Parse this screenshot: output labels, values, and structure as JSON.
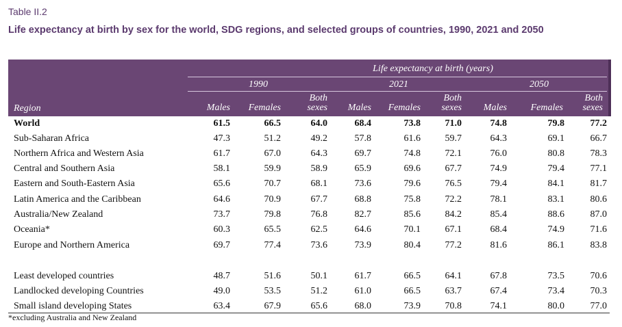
{
  "table_label": "Table II.2",
  "title": "Life expectancy at birth by sex for the world, SDG regions, and selected groups of countries, 1990, 2021 and 2050",
  "header": {
    "super": "Life expectancy at birth (years)",
    "region": "Region",
    "years": [
      "1990",
      "2021",
      "2050"
    ],
    "sub": {
      "males": "Males",
      "females": "Females",
      "both_line1": "Both",
      "both_line2": "sexes"
    }
  },
  "rows": [
    {
      "region": "World",
      "values": [
        "61.5",
        "66.5",
        "64.0",
        "68.4",
        "73.8",
        "71.0",
        "74.8",
        "79.8",
        "77.2"
      ]
    },
    {
      "region": "Sub-Saharan Africa",
      "values": [
        "47.3",
        "51.2",
        "49.2",
        "57.8",
        "61.6",
        "59.7",
        "64.3",
        "69.1",
        "66.7"
      ]
    },
    {
      "region": "Northern Africa and Western Asia",
      "values": [
        "61.7",
        "67.0",
        "64.3",
        "69.7",
        "74.8",
        "72.1",
        "76.0",
        "80.8",
        "78.3"
      ]
    },
    {
      "region": "Central and Southern Asia",
      "values": [
        "58.1",
        "59.9",
        "58.9",
        "65.9",
        "69.6",
        "67.7",
        "74.9",
        "79.4",
        "77.1"
      ]
    },
    {
      "region": "Eastern and South-Eastern Asia",
      "values": [
        "65.6",
        "70.7",
        "68.1",
        "73.6",
        "79.6",
        "76.5",
        "79.4",
        "84.1",
        "81.7"
      ]
    },
    {
      "region": "Latin America and the Caribbean",
      "values": [
        "64.6",
        "70.9",
        "67.7",
        "68.8",
        "75.8",
        "72.2",
        "78.1",
        "83.1",
        "80.6"
      ]
    },
    {
      "region": "Australia/New Zealand",
      "values": [
        "73.7",
        "79.8",
        "76.8",
        "82.7",
        "85.6",
        "84.2",
        "85.4",
        "88.6",
        "87.0"
      ]
    },
    {
      "region": "Oceania*",
      "values": [
        "60.3",
        "65.5",
        "62.5",
        "64.6",
        "70.1",
        "67.1",
        "68.4",
        "74.9",
        "71.6"
      ]
    },
    {
      "region": "Europe and Northern America",
      "values": [
        "69.7",
        "77.4",
        "73.6",
        "73.9",
        "80.4",
        "77.2",
        "81.6",
        "86.1",
        "83.8"
      ]
    },
    {
      "region": "Least developed countries",
      "values": [
        "48.7",
        "51.6",
        "50.1",
        "61.7",
        "66.5",
        "64.1",
        "67.8",
        "73.5",
        "70.6"
      ]
    },
    {
      "region": "Landlocked developing Countries",
      "values": [
        "49.0",
        "53.5",
        "51.2",
        "61.0",
        "66.5",
        "63.7",
        "67.4",
        "73.4",
        "70.3"
      ]
    },
    {
      "region": "Small island developing States",
      "values": [
        "63.4",
        "67.9",
        "65.6",
        "68.0",
        "73.9",
        "70.8",
        "74.1",
        "80.0",
        "77.0"
      ]
    }
  ],
  "footnote": "*excluding Australia and New Zealand"
}
